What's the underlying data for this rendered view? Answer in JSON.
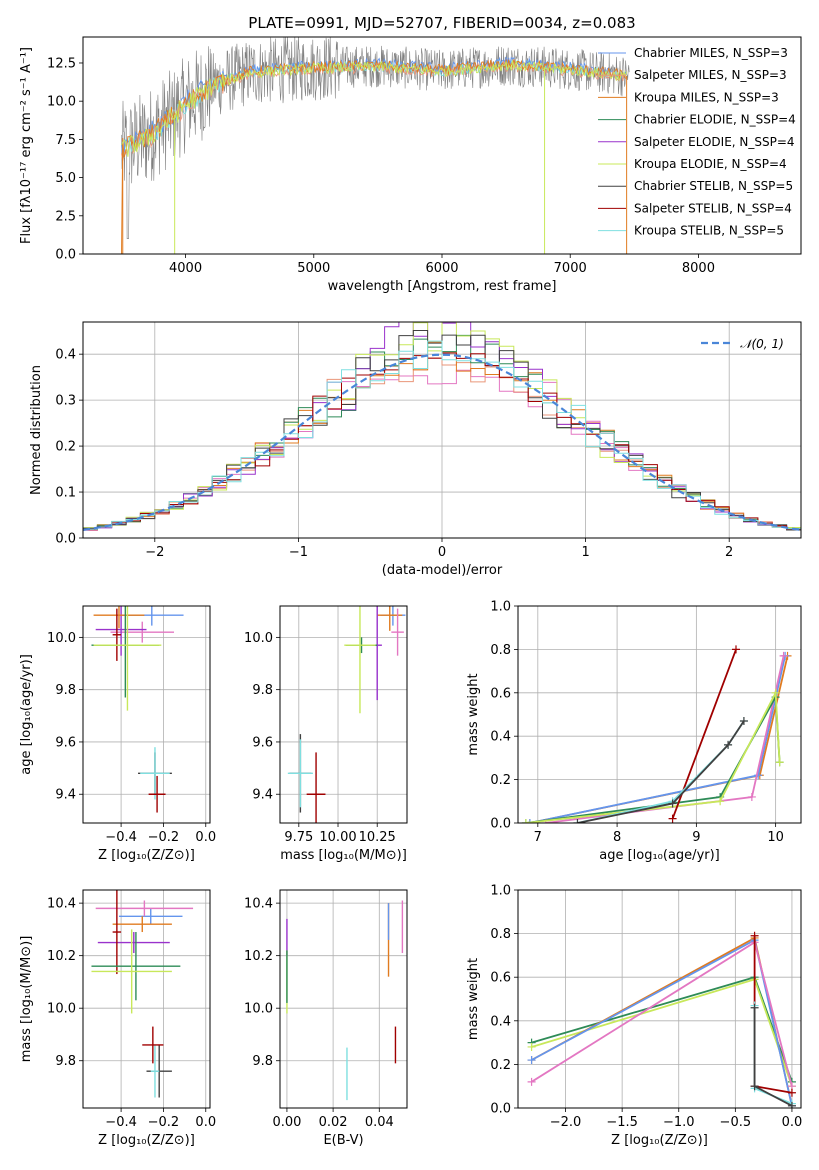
{
  "colors": {
    "chabrier_miles": "#6495ed",
    "salpeter_miles": "#e9967a",
    "kroupa_miles": "#e07b20",
    "chabrier_elodie": "#2e8b57",
    "salpeter_elodie": "#9932cc",
    "kroupa_elodie": "#c8e85a",
    "chabrier_stelib": "#404040",
    "salpeter_stelib": "#a00000",
    "kroupa_stelib": "#7fdfe0",
    "data": "#808080",
    "pink": "#e377c2"
  },
  "chart_data": [
    {
      "id": "spectrum",
      "type": "line",
      "title": "PLATE=0991, MJD=52707, FIBERID=0034, z=0.083",
      "xlabel": "wavelength [Angstrom, rest frame]",
      "ylabel": "Flux [fλ10⁻¹⁷ erg cm⁻² s⁻¹ A⁻¹]",
      "xlim": [
        3200,
        8800
      ],
      "ylim": [
        0,
        14.2
      ],
      "xticks": [
        "4000",
        "5000",
        "6000",
        "7000",
        "8000"
      ],
      "yticks": [
        "0.0",
        "2.5",
        "5.0",
        "7.5",
        "10.0",
        "12.5"
      ],
      "legend_position": "right",
      "legend": [
        "Chabrier MILES, N_SSP=3",
        "Salpeter MILES, N_SSP=3",
        "Kroupa MILES, N_SSP=3",
        "Chabrier ELODIE, N_SSP=4",
        "Salpeter ELODIE, N_SSP=4",
        "Kroupa ELODIE, N_SSP=4",
        "Chabrier STELIB, N_SSP=5",
        "Salpeter STELIB, N_SSP=4",
        "Kroupa STELIB, N_SSP=5"
      ],
      "continuum": {
        "x": [
          3500,
          3700,
          3900,
          4000,
          4200,
          4500,
          5000,
          5500,
          6000,
          6500,
          7000,
          7500
        ],
        "y": [
          6.8,
          7.6,
          9.0,
          9.8,
          11.0,
          11.9,
          12.2,
          12.3,
          12.0,
          12.4,
          12.1,
          11.6
        ]
      }
    },
    {
      "id": "residuals",
      "type": "line",
      "xlabel": "(data-model)/error",
      "ylabel": "Normed distribution",
      "xlim": [
        -2.5,
        2.5
      ],
      "ylim": [
        0,
        0.47
      ],
      "xticks": [
        "−2",
        "−1",
        "0",
        "1",
        "2"
      ],
      "yticks": [
        "0.0",
        "0.1",
        "0.2",
        "0.3",
        "0.4"
      ],
      "grid": true,
      "legend": [
        "𝒩(0, 1)"
      ],
      "bin_width": 0.1,
      "step_x_start": -2.5,
      "peak_heights": [
        0.36,
        0.37,
        0.4,
        0.42,
        0.46,
        0.44,
        0.43,
        0.39,
        0.4
      ]
    },
    {
      "id": "age_vs_Z",
      "type": "scatter",
      "xlabel": "Z [log₁₀(Z/Z⊙)]",
      "ylabel": "age  [log₁₀(age/yr)]",
      "xlim": [
        -0.58,
        0.02
      ],
      "ylim": [
        9.29,
        10.12
      ],
      "xticks": [
        "−0.4",
        "−0.2",
        "0.0"
      ],
      "yticks": [
        "9.4",
        "9.6",
        "9.8",
        "10.0"
      ],
      "grid": true,
      "points": [
        {
          "x": -0.255,
          "y": 10.085,
          "xerr": 0.15,
          "yerr": 0.04,
          "c": "chabrier_miles"
        },
        {
          "x": -0.3,
          "y": 10.02,
          "xerr": 0.15,
          "yerr": 0.04,
          "c": "pink"
        },
        {
          "x": -0.4,
          "y": 10.03,
          "xerr": 0.12,
          "yerr": 0.1,
          "c": "salpeter_elodie"
        },
        {
          "x": -0.41,
          "y": 10.085,
          "xerr": 0.12,
          "yerr": 0.05,
          "c": "kroupa_miles"
        },
        {
          "x": -0.42,
          "y": 10.01,
          "xerr": 0.02,
          "yerr": 0.1,
          "c": "salpeter_stelib"
        },
        {
          "x": -0.38,
          "y": 9.97,
          "xerr": 0.16,
          "yerr": 0.2,
          "c": "chabrier_elodie"
        },
        {
          "x": -0.37,
          "y": 9.97,
          "xerr": 0.16,
          "yerr": 0.25,
          "c": "kroupa_elodie"
        },
        {
          "x": -0.24,
          "y": 9.48,
          "xerr": 0.08,
          "yerr": 0.08,
          "c": "chabrier_stelib"
        },
        {
          "x": -0.24,
          "y": 9.48,
          "xerr": 0.07,
          "yerr": 0.1,
          "c": "kroupa_stelib"
        },
        {
          "x": -0.23,
          "y": 9.4,
          "xerr": 0.04,
          "yerr": 0.07,
          "c": "salpeter_stelib"
        }
      ]
    },
    {
      "id": "age_vs_mass",
      "type": "scatter",
      "xlabel": "mass [log₁₀(M/M⊙)]",
      "ylabel": "",
      "xlim": [
        9.63,
        10.44
      ],
      "ylim": [
        9.29,
        10.12
      ],
      "xticks": [
        "9.75",
        "10.00",
        "10.25"
      ],
      "yticks": [
        "9.4",
        "9.6",
        "9.8",
        "10.0"
      ],
      "grid": true,
      "points": [
        {
          "x": 10.35,
          "y": 10.085,
          "xerr": 0.08,
          "yerr": 0.04,
          "c": "chabrier_miles"
        },
        {
          "x": 10.33,
          "y": 10.085,
          "xerr": 0.08,
          "yerr": 0.06,
          "c": "kroupa_miles"
        },
        {
          "x": 10.38,
          "y": 10.02,
          "xerr": 0.04,
          "yerr": 0.09,
          "c": "pink"
        },
        {
          "x": 10.25,
          "y": 9.97,
          "xerr": 0.03,
          "yerr": 0.21,
          "c": "salpeter_elodie"
        },
        {
          "x": 10.15,
          "y": 9.97,
          "xerr": 0.1,
          "yerr": 0.03,
          "c": "chabrier_elodie"
        },
        {
          "x": 10.14,
          "y": 9.97,
          "xerr": 0.1,
          "yerr": 0.26,
          "c": "kroupa_elodie"
        },
        {
          "x": 9.76,
          "y": 9.48,
          "xerr": 0.07,
          "yerr": 0.15,
          "c": "chabrier_stelib"
        },
        {
          "x": 9.76,
          "y": 9.48,
          "xerr": 0.08,
          "yerr": 0.13,
          "c": "kroupa_stelib"
        },
        {
          "x": 9.86,
          "y": 9.4,
          "xerr": 0.06,
          "yerr": 0.16,
          "c": "salpeter_stelib"
        }
      ]
    },
    {
      "id": "massweight_vs_age",
      "type": "line",
      "xlabel": "age  [log₁₀(age/yr)]",
      "ylabel": "mass weight",
      "xlim": [
        6.75,
        10.32
      ],
      "ylim": [
        0,
        1
      ],
      "xticks": [
        "7",
        "8",
        "9",
        "10"
      ],
      "yticks": [
        "0.0",
        "0.2",
        "0.4",
        "0.6",
        "0.8",
        "1.0"
      ],
      "grid": true,
      "series": [
        {
          "c": "kroupa_miles",
          "x": [
            6.9,
            9.8,
            10.15
          ],
          "y": [
            0.0,
            0.22,
            0.77
          ]
        },
        {
          "c": "chabrier_miles",
          "x": [
            6.9,
            9.78,
            10.12
          ],
          "y": [
            0.0,
            0.22,
            0.77
          ]
        },
        {
          "c": "pink",
          "x": [
            7.1,
            9.7,
            10.1
          ],
          "y": [
            0.0,
            0.12,
            0.77
          ]
        },
        {
          "c": "chabrier_elodie",
          "x": [
            6.85,
            9.3,
            10.0,
            10.05
          ],
          "y": [
            0.0,
            0.12,
            0.58,
            0.28
          ]
        },
        {
          "c": "kroupa_elodie",
          "x": [
            6.85,
            9.3,
            10.0,
            10.05
          ],
          "y": [
            0.0,
            0.1,
            0.6,
            0.28
          ]
        },
        {
          "c": "salpeter_stelib",
          "x": [
            8.7,
            9.5
          ],
          "y": [
            0.02,
            0.8
          ]
        },
        {
          "c": "kroupa_stelib",
          "x": [
            7.5,
            8.7,
            9.4,
            9.6
          ],
          "y": [
            0.0,
            0.1,
            0.36,
            0.47
          ]
        },
        {
          "c": "chabrier_stelib",
          "x": [
            7.5,
            8.7,
            9.4,
            9.6
          ],
          "y": [
            0.0,
            0.09,
            0.36,
            0.47
          ]
        }
      ]
    },
    {
      "id": "mass_vs_Z",
      "type": "scatter",
      "xlabel": "Z [log₁₀(Z/Z⊙)]",
      "ylabel": "mass [log₁₀(M/M⊙)]",
      "xlim": [
        -0.58,
        0.02
      ],
      "ylim": [
        9.62,
        10.45
      ],
      "xticks": [
        "−0.4",
        "−0.2",
        "0.0"
      ],
      "yticks": [
        "9.8",
        "10.0",
        "10.2",
        "10.4"
      ],
      "grid": true,
      "points": [
        {
          "x": -0.26,
          "y": 10.35,
          "xerr": 0.15,
          "yerr": 0.03,
          "c": "chabrier_miles"
        },
        {
          "x": -0.29,
          "y": 10.38,
          "xerr": 0.23,
          "yerr": 0.03,
          "c": "pink"
        },
        {
          "x": -0.3,
          "y": 10.32,
          "xerr": 0.14,
          "yerr": 0.03,
          "c": "kroupa_miles"
        },
        {
          "x": -0.34,
          "y": 10.25,
          "xerr": 0.17,
          "yerr": 0.04,
          "c": "salpeter_elodie"
        },
        {
          "x": -0.42,
          "y": 10.29,
          "xerr": 0.02,
          "yerr": 0.16,
          "c": "salpeter_stelib"
        },
        {
          "x": -0.33,
          "y": 10.16,
          "xerr": 0.21,
          "yerr": 0.13,
          "c": "chabrier_elodie"
        },
        {
          "x": -0.35,
          "y": 10.14,
          "xerr": 0.19,
          "yerr": 0.16,
          "c": "kroupa_elodie"
        },
        {
          "x": -0.22,
          "y": 9.76,
          "xerr": 0.06,
          "yerr": 0.1,
          "c": "chabrier_stelib"
        },
        {
          "x": -0.24,
          "y": 9.76,
          "xerr": 0.02,
          "yerr": 0.1,
          "c": "kroupa_stelib"
        },
        {
          "x": -0.25,
          "y": 9.86,
          "xerr": 0.05,
          "yerr": 0.07,
          "c": "salpeter_stelib"
        }
      ]
    },
    {
      "id": "mass_vs_EBV",
      "type": "scatter",
      "xlabel": "E(B-V)",
      "ylabel": "",
      "xlim": [
        -0.003,
        0.052
      ],
      "ylim": [
        9.62,
        10.45
      ],
      "xticks": [
        "0.00",
        "0.02",
        "0.04"
      ],
      "yticks": [
        "9.8",
        "10.0",
        "10.2",
        "10.4"
      ],
      "grid": true,
      "points": [
        {
          "x": 0.0,
          "y": 10.27,
          "xerr": 0.0,
          "yerr": 0.07,
          "c": "salpeter_elodie"
        },
        {
          "x": 0.0,
          "y": 10.1,
          "xerr": 0.0,
          "yerr": 0.12,
          "c": "kroupa_elodie"
        },
        {
          "x": 0.0,
          "y": 10.12,
          "xerr": 0.0,
          "yerr": 0.1,
          "c": "chabrier_elodie"
        },
        {
          "x": 0.044,
          "y": 10.26,
          "xerr": 0.0,
          "yerr": 0.14,
          "c": "kroupa_miles"
        },
        {
          "x": 0.044,
          "y": 10.33,
          "xerr": 0.0,
          "yerr": 0.07,
          "c": "chabrier_miles"
        },
        {
          "x": 0.05,
          "y": 10.31,
          "xerr": 0.0,
          "yerr": 0.1,
          "c": "pink"
        },
        {
          "x": 0.026,
          "y": 9.75,
          "xerr": 0.0,
          "yerr": 0.1,
          "c": "kroupa_stelib"
        },
        {
          "x": 0.047,
          "y": 9.86,
          "xerr": 0.0,
          "yerr": 0.07,
          "c": "salpeter_stelib"
        }
      ]
    },
    {
      "id": "massweight_vs_Z",
      "type": "line",
      "xlabel": "Z [log₁₀(Z/Z⊙)]",
      "ylabel": "mass weight",
      "xlim": [
        -2.42,
        0.08
      ],
      "ylim": [
        0,
        1
      ],
      "xticks": [
        "−2.0",
        "−1.5",
        "−1.0",
        "−0.5",
        "0.0"
      ],
      "yticks": [
        "0.0",
        "0.2",
        "0.4",
        "0.6",
        "0.8",
        "1.0"
      ],
      "grid": true,
      "series": [
        {
          "c": "chabrier_elodie",
          "x": [
            -2.3,
            -0.33,
            0.0
          ],
          "y": [
            0.3,
            0.6,
            0.12
          ]
        },
        {
          "c": "kroupa_elodie",
          "x": [
            -2.3,
            -0.33,
            0.0
          ],
          "y": [
            0.28,
            0.59,
            0.1
          ]
        },
        {
          "c": "kroupa_miles",
          "x": [
            -2.3,
            -0.33,
            0.0
          ],
          "y": [
            0.22,
            0.78,
            0.01
          ]
        },
        {
          "c": "chabrier_miles",
          "x": [
            -2.3,
            -0.33,
            0.0
          ],
          "y": [
            0.22,
            0.77,
            0.01
          ]
        },
        {
          "c": "pink",
          "x": [
            -2.3,
            -0.33,
            0.0
          ],
          "y": [
            0.12,
            0.76,
            0.1
          ]
        },
        {
          "c": "salpeter_stelib",
          "x": [
            -0.33,
            -0.33,
            0.0
          ],
          "y": [
            0.79,
            0.1,
            0.07
          ]
        },
        {
          "c": "kroupa_stelib",
          "x": [
            -0.33,
            -0.33,
            0.0
          ],
          "y": [
            0.47,
            0.09,
            0.02
          ]
        },
        {
          "c": "chabrier_stelib",
          "x": [
            -0.33,
            -0.33,
            0.0
          ],
          "y": [
            0.46,
            0.1,
            0.01
          ]
        }
      ]
    }
  ]
}
